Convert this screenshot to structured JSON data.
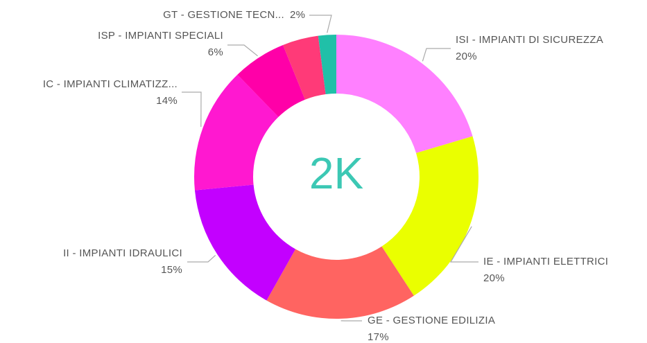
{
  "chart_data": {
    "type": "donut",
    "center_label": "2K",
    "categories": [
      "ISI - IMPIANTI DI SICUREZZA",
      "IE - IMPIANTI ELETTRICI",
      "GE - GESTIONE EDILIZIA",
      "II - IMPIANTI IDRAULICI",
      "IC - IMPIANTI CLIMATIZZ...",
      "ISP - IMPIANTI SPECIALI",
      null,
      "GT - GESTIONE TECN..."
    ],
    "values": [
      20,
      20,
      17,
      15,
      14,
      6,
      4,
      2
    ],
    "value_labels": [
      "20%",
      "20%",
      "17%",
      "15%",
      "14%",
      "6%",
      null,
      "2%"
    ],
    "colors": [
      "#ff80ff",
      "#eaff00",
      "#ff6461",
      "#c300ff",
      "#ff18d0",
      "#ff00a8",
      "#ff3a78",
      "#20c0a8"
    ]
  }
}
